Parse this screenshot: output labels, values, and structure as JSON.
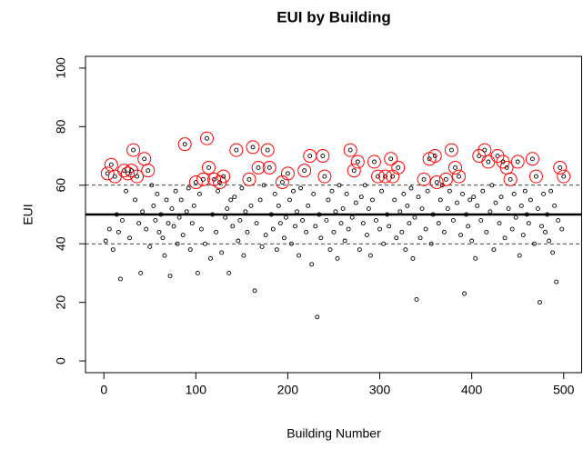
{
  "chart_data": {
    "type": "scatter",
    "title": "EUI by Building",
    "xlabel": "Building Number",
    "ylabel": "EUI",
    "xlim": [
      -20,
      520
    ],
    "ylim": [
      -4,
      104
    ],
    "xticks": [
      0,
      100,
      200,
      300,
      400,
      500
    ],
    "yticks": [
      0,
      20,
      40,
      60,
      80,
      100
    ],
    "point_color": "#000000",
    "highlight_color": "#ff0000",
    "reference_lines": [
      {
        "value": 50,
        "style": "solid"
      },
      {
        "value": 40,
        "style": "dashed"
      },
      {
        "value": 60,
        "style": "dashed"
      }
    ],
    "x": [
      2,
      4,
      6,
      8,
      10,
      12,
      14,
      16,
      18,
      20,
      22,
      24,
      26,
      28,
      30,
      32,
      34,
      36,
      38,
      40,
      42,
      44,
      46,
      48,
      50,
      52,
      54,
      56,
      58,
      60,
      62,
      64,
      66,
      68,
      70,
      72,
      74,
      76,
      78,
      80,
      82,
      84,
      86,
      88,
      90,
      92,
      94,
      96,
      98,
      100,
      102,
      104,
      106,
      108,
      110,
      112,
      114,
      116,
      118,
      120,
      122,
      124,
      126,
      128,
      130,
      132,
      134,
      136,
      138,
      140,
      142,
      144,
      146,
      148,
      150,
      152,
      154,
      156,
      158,
      160,
      162,
      164,
      166,
      168,
      170,
      172,
      174,
      176,
      178,
      180,
      182,
      184,
      186,
      188,
      190,
      192,
      194,
      196,
      198,
      200,
      202,
      204,
      206,
      208,
      210,
      212,
      214,
      216,
      218,
      220,
      222,
      224,
      226,
      228,
      230,
      232,
      234,
      236,
      238,
      240,
      242,
      244,
      246,
      248,
      250,
      252,
      254,
      256,
      258,
      260,
      262,
      264,
      266,
      268,
      270,
      272,
      274,
      276,
      278,
      280,
      282,
      284,
      286,
      288,
      290,
      292,
      294,
      296,
      298,
      300,
      302,
      304,
      306,
      308,
      310,
      312,
      314,
      316,
      318,
      320,
      322,
      324,
      326,
      328,
      330,
      332,
      334,
      336,
      338,
      340,
      342,
      344,
      346,
      348,
      350,
      352,
      354,
      356,
      358,
      360,
      362,
      364,
      366,
      368,
      370,
      372,
      374,
      376,
      378,
      380,
      382,
      384,
      386,
      388,
      390,
      392,
      394,
      396,
      398,
      400,
      402,
      404,
      406,
      408,
      410,
      412,
      414,
      416,
      418,
      420,
      422,
      424,
      426,
      428,
      430,
      432,
      434,
      436,
      438,
      440,
      442,
      444,
      446,
      448,
      450,
      452,
      454,
      456,
      458,
      460,
      462,
      464,
      466,
      468,
      470,
      472,
      474,
      476,
      478,
      480,
      482,
      484,
      486,
      488,
      490,
      492,
      494,
      496,
      498,
      500
    ],
    "y": [
      41,
      64,
      45,
      67,
      38,
      63,
      50,
      44,
      28,
      48,
      65,
      58,
      64,
      42,
      65,
      72,
      55,
      63,
      47,
      30,
      51,
      69,
      45,
      65,
      39,
      60,
      53,
      48,
      57,
      44,
      50,
      42,
      36,
      55,
      47,
      29,
      52,
      46,
      58,
      40,
      49,
      55,
      43,
      74,
      51,
      59,
      38,
      47,
      53,
      61,
      30,
      57,
      45,
      62,
      40,
      76,
      66,
      35,
      50,
      62,
      44,
      58,
      61,
      37,
      63,
      49,
      52,
      30,
      55,
      46,
      56,
      72,
      41,
      48,
      59,
      36,
      51,
      44,
      62,
      53,
      73,
      24,
      47,
      66,
      55,
      39,
      60,
      43,
      72,
      66,
      50,
      45,
      57,
      38,
      53,
      47,
      61,
      42,
      49,
      64,
      55,
      40,
      58,
      46,
      51,
      36,
      59,
      48,
      65,
      44,
      53,
      70,
      33,
      57,
      46,
      15,
      50,
      42,
      70,
      63,
      48,
      55,
      38,
      58,
      44,
      51,
      35,
      60,
      47,
      52,
      41,
      57,
      45,
      72,
      49,
      65,
      54,
      68,
      38,
      56,
      47,
      60,
      43,
      52,
      36,
      55,
      68,
      48,
      63,
      45,
      58,
      40,
      63,
      50,
      46,
      69,
      63,
      55,
      42,
      66,
      51,
      44,
      57,
      38,
      53,
      47,
      59,
      35,
      49,
      21,
      56,
      42,
      52,
      62,
      45,
      58,
      69,
      40,
      50,
      70,
      61,
      47,
      55,
      60,
      44,
      62,
      52,
      58,
      72,
      48,
      66,
      54,
      63,
      43,
      57,
      23,
      50,
      46,
      55,
      41,
      56,
      35,
      53,
      70,
      48,
      58,
      72,
      44,
      68,
      51,
      60,
      38,
      54,
      70,
      47,
      56,
      68,
      42,
      66,
      52,
      62,
      45,
      57,
      49,
      68,
      36,
      53,
      43,
      58,
      50,
      47,
      55,
      69,
      40,
      63,
      52,
      20,
      46,
      57,
      44,
      50,
      41,
      58,
      37,
      53,
      27,
      48,
      66,
      45,
      63
    ]
  }
}
